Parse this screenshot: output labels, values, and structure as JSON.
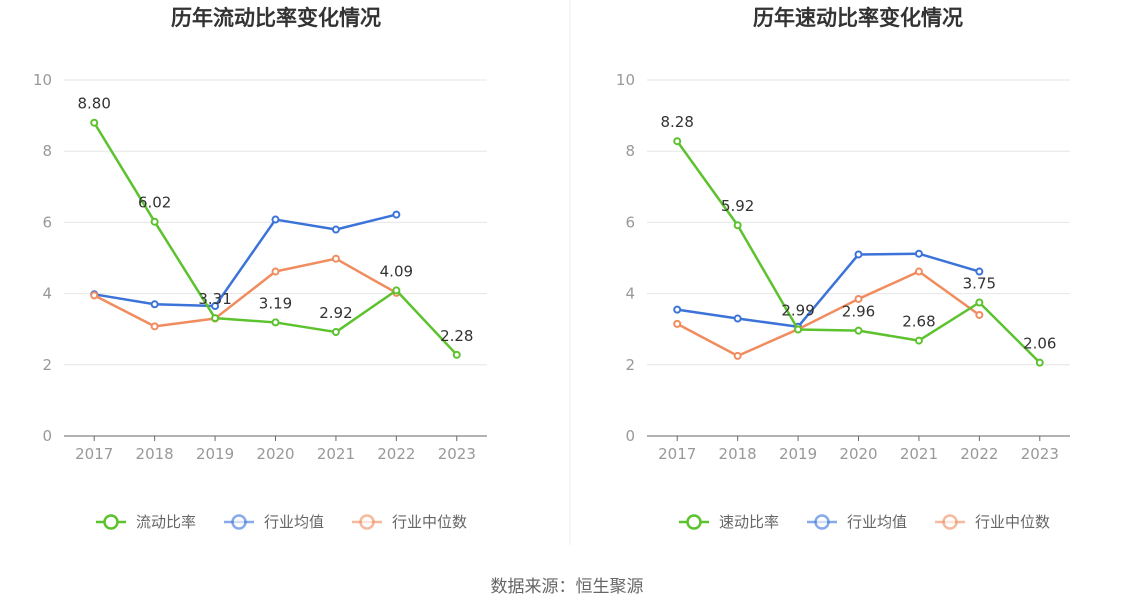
{
  "source_note": "数据来源：恒生聚源",
  "colors": {
    "main": "#5cc22e",
    "avg": "#3b73d9",
    "median": "#f08c5e",
    "grid": "#e6e6e6",
    "axis": "#666666"
  },
  "chart_data": [
    {
      "type": "line",
      "title": "历年流动比率变化情况",
      "categories": [
        "2017",
        "2018",
        "2019",
        "2020",
        "2021",
        "2022",
        "2023"
      ],
      "ylim": [
        0,
        10
      ],
      "yticks": [
        "0",
        "2",
        "4",
        "6",
        "8",
        "10"
      ],
      "grid": true,
      "legend_position": "bottom",
      "series": [
        {
          "name": "流动比率",
          "color": "#5cc22e",
          "values": [
            8.8,
            6.02,
            3.31,
            3.19,
            2.92,
            4.09,
            2.28
          ],
          "labels": [
            "8.80",
            "6.02",
            "3.31",
            "3.19",
            "2.92",
            "4.09",
            "2.28"
          ]
        },
        {
          "name": "行业均值",
          "color": "#3b73d9",
          "values": [
            3.98,
            3.7,
            3.65,
            6.08,
            5.8,
            6.22,
            null
          ]
        },
        {
          "name": "行业中位数",
          "color": "#f08c5e",
          "values": [
            3.95,
            3.08,
            3.3,
            4.62,
            4.98,
            4.02,
            null
          ]
        }
      ]
    },
    {
      "type": "line",
      "title": "历年速动比率变化情况",
      "categories": [
        "2017",
        "2018",
        "2019",
        "2020",
        "2021",
        "2022",
        "2023"
      ],
      "ylim": [
        0,
        10
      ],
      "yticks": [
        "0",
        "2",
        "4",
        "6",
        "8",
        "10"
      ],
      "grid": true,
      "legend_position": "bottom",
      "series": [
        {
          "name": "速动比率",
          "color": "#5cc22e",
          "values": [
            8.28,
            5.92,
            2.99,
            2.96,
            2.68,
            3.75,
            2.06
          ],
          "labels": [
            "8.28",
            "5.92",
            "2.99",
            "2.96",
            "2.68",
            "3.75",
            "2.06"
          ]
        },
        {
          "name": "行业均值",
          "color": "#3b73d9",
          "values": [
            3.55,
            3.3,
            3.07,
            5.1,
            5.12,
            4.62,
            null
          ]
        },
        {
          "name": "行业中位数",
          "color": "#f08c5e",
          "values": [
            3.15,
            2.25,
            3.0,
            3.85,
            4.62,
            3.4,
            null
          ]
        }
      ]
    }
  ]
}
